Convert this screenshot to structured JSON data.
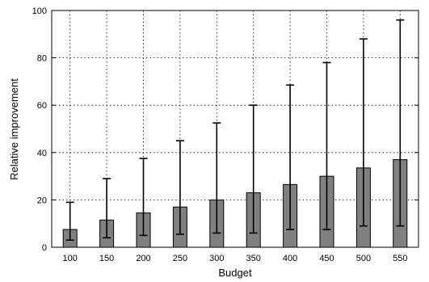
{
  "chart_data": {
    "type": "bar",
    "xlabel": "Budget",
    "ylabel": "Relative improvement",
    "categories": [
      "100",
      "150",
      "200",
      "250",
      "300",
      "350",
      "400",
      "450",
      "500",
      "550"
    ],
    "values": [
      7.5,
      11.5,
      14.5,
      17,
      20,
      23,
      26.5,
      30,
      33.5,
      37
    ],
    "error_low": [
      3,
      4,
      5,
      5.5,
      6,
      6,
      7.5,
      7.5,
      9,
      9
    ],
    "error_high": [
      19,
      29,
      37.5,
      45,
      52.5,
      60,
      68.5,
      78,
      88,
      96
    ],
    "ylim": [
      0,
      100
    ],
    "yticks": [
      "0",
      "20",
      "40",
      "60",
      "80",
      "100"
    ],
    "grid": true,
    "bar_color": "#808080"
  }
}
